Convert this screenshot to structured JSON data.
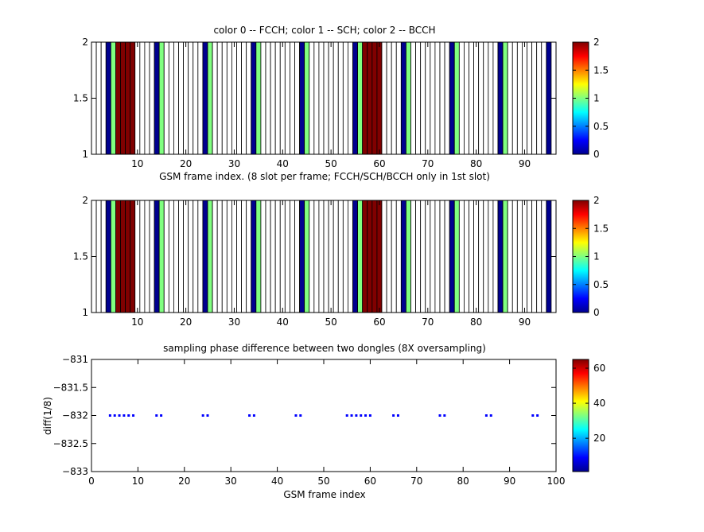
{
  "figure": {
    "panel1": {
      "title": "color 0 -- FCCH; color 1 -- SCH; color 2 -- BCCH",
      "xlabel": "GSM frame index. (8 slot per frame; FCCH/SCH/BCCH only in 1st slot)"
    },
    "panel2": {
      "title": "",
      "xlabel": ""
    },
    "panel3": {
      "title": "sampling phase difference between two dongles (8X oversampling)",
      "xlabel": "GSM frame index",
      "ylabel": "diff(1/8)"
    }
  },
  "chart_data": [
    {
      "type": "heatmap",
      "title": "color 0 -- FCCH; color 1 -- SCH; color 2 -- BCCH",
      "xlabel": "GSM frame index. (8 slot per frame; FCCH/SCH/BCCH only in 1st slot)",
      "ylabel": "",
      "xlim": [
        1,
        96
      ],
      "ylim": [
        1,
        2
      ],
      "xticks": [
        10,
        20,
        30,
        40,
        50,
        60,
        70,
        80,
        90
      ],
      "yticks": [
        1,
        1.5,
        2
      ],
      "colorbar": {
        "colormap": "jet",
        "range": [
          0,
          2
        ],
        "ticks": [
          0,
          0.5,
          1,
          1.5,
          2
        ]
      },
      "channel_colors": {
        "0": "#00008f",
        "1": "#80ff80",
        "2": "#800000"
      },
      "marked_frames": [
        {
          "frame": 4,
          "value": 0
        },
        {
          "frame": 5,
          "value": 1
        },
        {
          "frame": 6,
          "value": 2
        },
        {
          "frame": 7,
          "value": 2
        },
        {
          "frame": 8,
          "value": 2
        },
        {
          "frame": 9,
          "value": 2
        },
        {
          "frame": 14,
          "value": 0
        },
        {
          "frame": 15,
          "value": 1
        },
        {
          "frame": 24,
          "value": 0
        },
        {
          "frame": 25,
          "value": 1
        },
        {
          "frame": 34,
          "value": 0
        },
        {
          "frame": 35,
          "value": 1
        },
        {
          "frame": 44,
          "value": 0
        },
        {
          "frame": 45,
          "value": 1
        },
        {
          "frame": 55,
          "value": 0
        },
        {
          "frame": 56,
          "value": 1
        },
        {
          "frame": 57,
          "value": 2
        },
        {
          "frame": 58,
          "value": 2
        },
        {
          "frame": 59,
          "value": 2
        },
        {
          "frame": 60,
          "value": 2
        },
        {
          "frame": 65,
          "value": 0
        },
        {
          "frame": 66,
          "value": 1
        },
        {
          "frame": 75,
          "value": 0
        },
        {
          "frame": 76,
          "value": 1
        },
        {
          "frame": 85,
          "value": 0
        },
        {
          "frame": 86,
          "value": 1
        },
        {
          "frame": 95,
          "value": 0
        }
      ]
    },
    {
      "type": "heatmap",
      "title": "",
      "xlabel": "",
      "ylabel": "",
      "xlim": [
        1,
        96
      ],
      "ylim": [
        1,
        2
      ],
      "xticks": [
        10,
        20,
        30,
        40,
        50,
        60,
        70,
        80,
        90
      ],
      "yticks": [
        1,
        1.5,
        2
      ],
      "colorbar": {
        "colormap": "jet",
        "range": [
          0,
          2
        ],
        "ticks": [
          0,
          0.5,
          1,
          1.5,
          2
        ]
      },
      "channel_colors": {
        "0": "#00008f",
        "1": "#80ff80",
        "2": "#800000"
      },
      "marked_frames": [
        {
          "frame": 4,
          "value": 0
        },
        {
          "frame": 5,
          "value": 1
        },
        {
          "frame": 6,
          "value": 2
        },
        {
          "frame": 7,
          "value": 2
        },
        {
          "frame": 8,
          "value": 2
        },
        {
          "frame": 9,
          "value": 2
        },
        {
          "frame": 14,
          "value": 0
        },
        {
          "frame": 15,
          "value": 1
        },
        {
          "frame": 24,
          "value": 0
        },
        {
          "frame": 25,
          "value": 1
        },
        {
          "frame": 34,
          "value": 0
        },
        {
          "frame": 35,
          "value": 1
        },
        {
          "frame": 44,
          "value": 0
        },
        {
          "frame": 45,
          "value": 1
        },
        {
          "frame": 55,
          "value": 0
        },
        {
          "frame": 56,
          "value": 1
        },
        {
          "frame": 57,
          "value": 2
        },
        {
          "frame": 58,
          "value": 2
        },
        {
          "frame": 59,
          "value": 2
        },
        {
          "frame": 60,
          "value": 2
        },
        {
          "frame": 65,
          "value": 0
        },
        {
          "frame": 66,
          "value": 1
        },
        {
          "frame": 75,
          "value": 0
        },
        {
          "frame": 76,
          "value": 1
        },
        {
          "frame": 85,
          "value": 0
        },
        {
          "frame": 86,
          "value": 1
        },
        {
          "frame": 95,
          "value": 0
        }
      ]
    },
    {
      "type": "scatter",
      "title": "sampling phase difference between two dongles (8X oversampling)",
      "xlabel": "GSM frame index",
      "ylabel": "diff(1/8)",
      "xlim": [
        0,
        100
      ],
      "ylim": [
        -833,
        -831
      ],
      "xticks": [
        0,
        10,
        20,
        30,
        40,
        50,
        60,
        70,
        80,
        90,
        100
      ],
      "yticks": [
        -831,
        -831.5,
        -832,
        -832.5,
        -833
      ],
      "ytick_labels": [
        "−831",
        "−831.5",
        "−832",
        "−832.5",
        "−833"
      ],
      "marker_color": "#0000ff",
      "colorbar": {
        "colormap": "jet",
        "range": [
          1,
          65
        ],
        "ticks": [
          20,
          40,
          60
        ]
      },
      "series": [
        {
          "x": [
            4,
            5,
            6,
            7,
            8,
            9,
            14,
            15,
            24,
            25,
            34,
            35,
            44,
            45,
            55,
            56,
            57,
            58,
            59,
            60,
            65,
            66,
            75,
            76,
            85,
            86,
            95,
            96
          ],
          "y": [
            -832,
            -832,
            -832,
            -832,
            -832,
            -832,
            -832,
            -832,
            -832,
            -832,
            -832,
            -832,
            -832,
            -832,
            -832,
            -832,
            -832,
            -832,
            -832,
            -832,
            -832,
            -832,
            -832,
            -832,
            -832,
            -832,
            -832,
            -832
          ]
        }
      ]
    }
  ]
}
